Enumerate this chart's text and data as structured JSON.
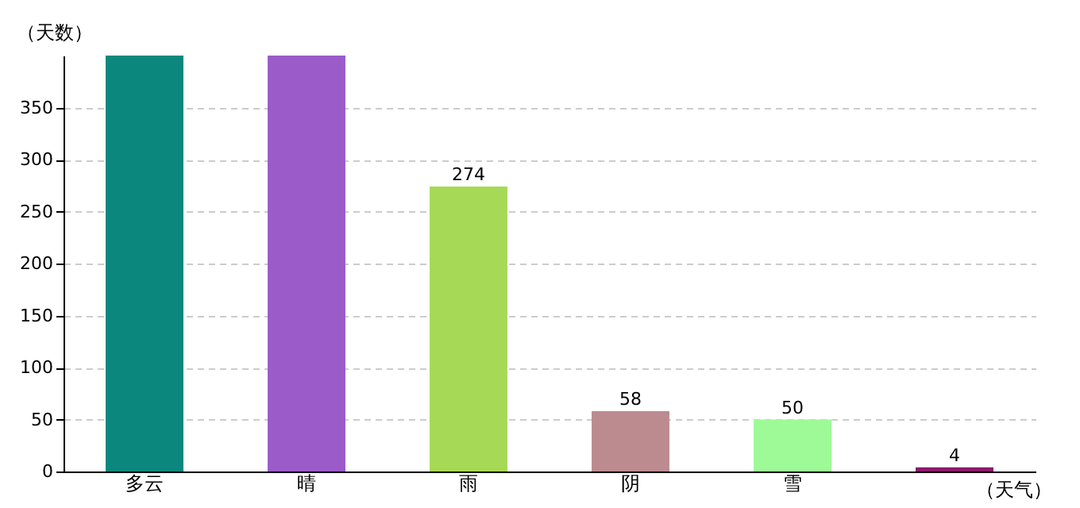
{
  "chart_data": {
    "type": "bar",
    "xlabel": "（天气）",
    "ylabel": "（天数）",
    "categories": [
      "多云",
      "晴",
      "雨",
      "阴",
      "雪",
      null
    ],
    "values": [
      400,
      400,
      274,
      58,
      50,
      4
    ],
    "colors": [
      "#0b877d",
      "#9b5bc9",
      "#a6d955",
      "#bc8b8f",
      "#9dfa97",
      "#8c1a6c"
    ],
    "value_labels": [
      null,
      null,
      "274",
      "58",
      "50",
      "4"
    ],
    "ylim": [
      0,
      400
    ],
    "yticks": [
      0,
      50,
      100,
      150,
      200,
      250,
      300,
      350
    ],
    "grid": "y"
  }
}
